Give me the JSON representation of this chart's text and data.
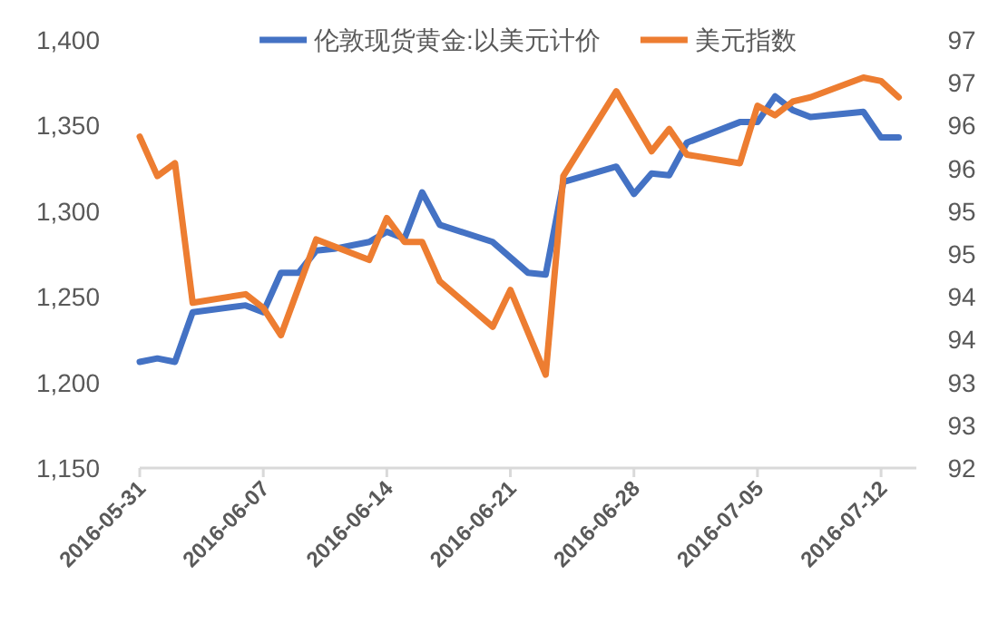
{
  "chart_data": {
    "type": "line",
    "legend": "top",
    "marker": "none",
    "line_style": "solid",
    "xlim": [
      "2016-05-31",
      "2016-07-14"
    ],
    "xticks": [
      "2016-05-31",
      "2016-06-07",
      "2016-06-14",
      "2016-06-21",
      "2016-06-28",
      "2016-07-05",
      "2016-07-12"
    ],
    "ylim": [
      1150,
      1400
    ],
    "yticks": [
      {
        "value": 1150,
        "label": "1,150"
      },
      {
        "value": 1200,
        "label": "1,200"
      },
      {
        "value": 1250,
        "label": "1,250"
      },
      {
        "value": 1300,
        "label": "1,300"
      },
      {
        "value": 1350,
        "label": "1,350"
      },
      {
        "value": 1400,
        "label": "1,400"
      }
    ],
    "y2lim": [
      92,
      97
    ],
    "y2ticks": [
      {
        "value": 92,
        "label": "92"
      },
      {
        "value": 92.5,
        "label": "93"
      },
      {
        "value": 93,
        "label": "93"
      },
      {
        "value": 93.5,
        "label": "94"
      },
      {
        "value": 94,
        "label": "94"
      },
      {
        "value": 94.5,
        "label": "95"
      },
      {
        "value": 95,
        "label": "95"
      },
      {
        "value": 95.5,
        "label": "96"
      },
      {
        "value": 96,
        "label": "96"
      },
      {
        "value": 96.5,
        "label": "97"
      },
      {
        "value": 97,
        "label": "97"
      }
    ],
    "series": [
      {
        "name": "伦敦现货黄金:以美元计价",
        "color": "#4472c4",
        "x": [
          "2016-05-31",
          "2016-06-01",
          "2016-06-02",
          "2016-06-03",
          "2016-06-06",
          "2016-06-07",
          "2016-06-08",
          "2016-06-09",
          "2016-06-10",
          "2016-06-11",
          "2016-06-13",
          "2016-06-14",
          "2016-06-15",
          "2016-06-16",
          "2016-06-17",
          "2016-06-20",
          "2016-06-22",
          "2016-06-23",
          "2016-06-24",
          "2016-06-27",
          "2016-06-28",
          "2016-06-29",
          "2016-06-30",
          "2016-07-01",
          "2016-07-04",
          "2016-07-05",
          "2016-07-06",
          "2016-07-07",
          "2016-07-08",
          "2016-07-11",
          "2016-07-12",
          "2016-07-13"
        ],
        "values": [
          1212,
          1214,
          1212,
          1241,
          1245,
          1241,
          1264,
          1264,
          1277,
          1278,
          1282,
          1288,
          1284,
          1311,
          1292,
          1282,
          1264,
          1263,
          1317,
          1326,
          1310,
          1322,
          1321,
          1340,
          1352,
          1352,
          1367,
          1359,
          1355,
          1358,
          1343,
          1343
        ]
      },
      {
        "name": "美元指数",
        "color": "#ed7d31",
        "axis": "y2",
        "x": [
          "2016-05-31",
          "2016-06-01",
          "2016-06-02",
          "2016-06-03",
          "2016-06-06",
          "2016-06-07",
          "2016-06-08",
          "2016-06-10",
          "2016-06-13",
          "2016-06-14",
          "2016-06-15",
          "2016-06-16",
          "2016-06-17",
          "2016-06-20",
          "2016-06-21",
          "2016-06-23",
          "2016-06-24",
          "2016-06-27",
          "2016-06-29",
          "2016-06-30",
          "2016-07-01",
          "2016-07-04",
          "2016-07-05",
          "2016-07-06",
          "2016-07-07",
          "2016-07-08",
          "2016-07-11",
          "2016-07-12",
          "2016-07-13"
        ],
        "values": [
          95.87,
          95.41,
          95.56,
          93.93,
          94.03,
          93.87,
          93.55,
          94.67,
          94.43,
          94.92,
          94.64,
          94.64,
          94.18,
          93.65,
          94.08,
          93.09,
          95.41,
          96.4,
          95.7,
          95.96,
          95.66,
          95.56,
          96.23,
          96.12,
          96.28,
          96.33,
          96.56,
          96.52,
          96.33
        ]
      }
    ]
  }
}
